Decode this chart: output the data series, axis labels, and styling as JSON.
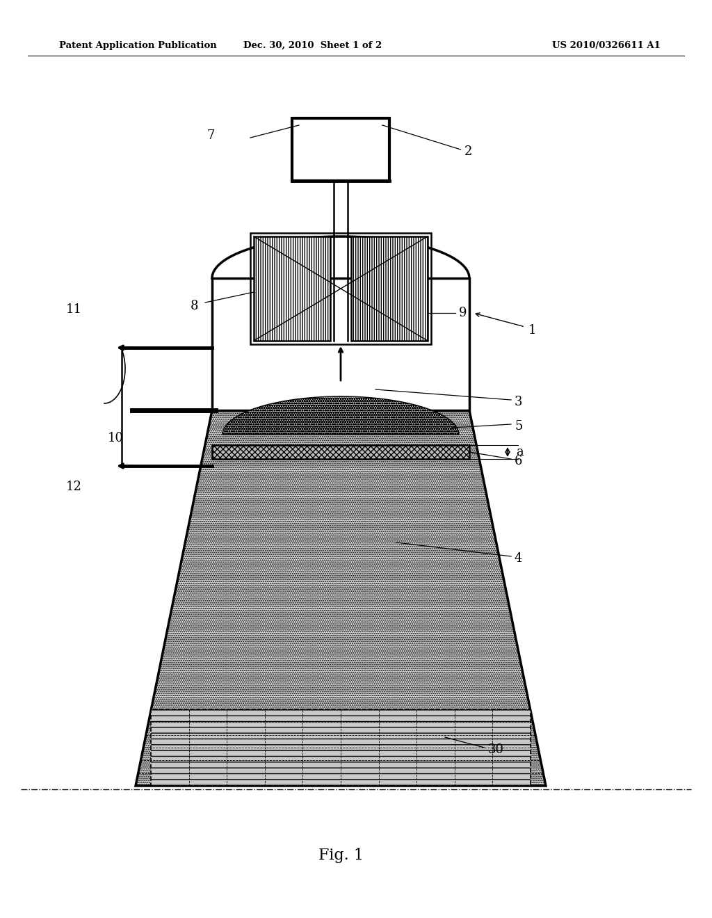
{
  "bg_color": "#ffffff",
  "header_left": "Patent Application Publication",
  "header_center": "Dec. 30, 2010  Sheet 1 of 2",
  "header_right": "US 2010/0326611 A1",
  "footer_label": "Fig. 1"
}
